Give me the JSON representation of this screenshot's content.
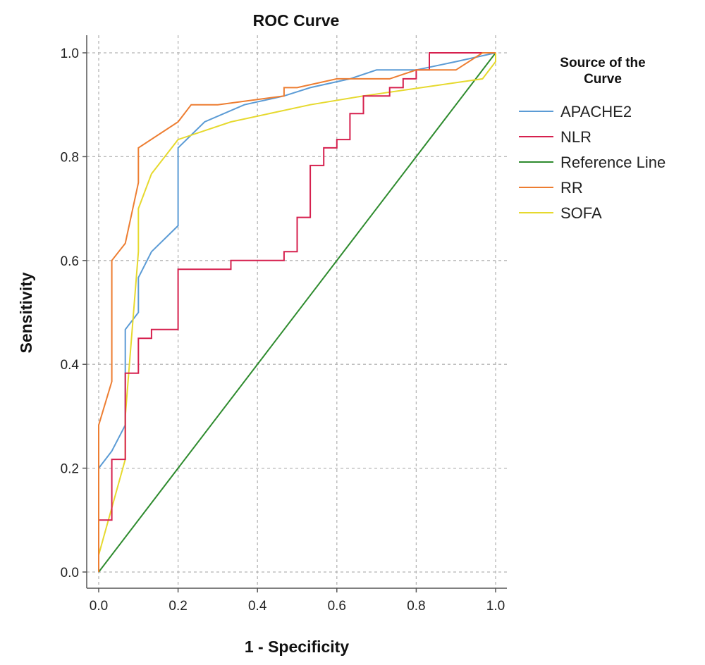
{
  "chart_data": {
    "type": "line",
    "title": "ROC Curve",
    "xlabel": "1 - Specificity",
    "ylabel": "Sensitivity",
    "xlim": [
      0,
      1
    ],
    "ylim": [
      0,
      1
    ],
    "x_ticks": [
      "0.0",
      "0.2",
      "0.4",
      "0.6",
      "0.8",
      "1.0"
    ],
    "y_ticks": [
      "0.0",
      "0.2",
      "0.4",
      "0.6",
      "0.8",
      "1.0"
    ],
    "x_tick_values": [
      0,
      0.2,
      0.4,
      0.6,
      0.8,
      1.0
    ],
    "y_tick_values": [
      0,
      0.2,
      0.4,
      0.6,
      0.8,
      1.0
    ],
    "grid": true,
    "legend": {
      "title": "Source of the Curve",
      "title_lines": [
        "Source of the",
        "Curve"
      ],
      "placement": "right"
    },
    "series": [
      {
        "name": "APACHE2",
        "color": "#5b9bd5",
        "points": [
          [
            0,
            0
          ],
          [
            0,
            0.2
          ],
          [
            0.033,
            0.233
          ],
          [
            0.067,
            0.283
          ],
          [
            0.067,
            0.467
          ],
          [
            0.1,
            0.5
          ],
          [
            0.1,
            0.567
          ],
          [
            0.133,
            0.617
          ],
          [
            0.2,
            0.667
          ],
          [
            0.2,
            0.817
          ],
          [
            0.267,
            0.867
          ],
          [
            0.367,
            0.9
          ],
          [
            0.467,
            0.917
          ],
          [
            0.533,
            0.933
          ],
          [
            0.633,
            0.95
          ],
          [
            0.7,
            0.967
          ],
          [
            0.8,
            0.967
          ],
          [
            0.9,
            0.983
          ],
          [
            1.0,
            1.0
          ]
        ]
      },
      {
        "name": "NLR",
        "color": "#d6204e",
        "points": [
          [
            0,
            0
          ],
          [
            0,
            0.1
          ],
          [
            0.033,
            0.1
          ],
          [
            0.033,
            0.217
          ],
          [
            0.067,
            0.217
          ],
          [
            0.067,
            0.383
          ],
          [
            0.1,
            0.383
          ],
          [
            0.1,
            0.45
          ],
          [
            0.133,
            0.45
          ],
          [
            0.133,
            0.467
          ],
          [
            0.2,
            0.467
          ],
          [
            0.2,
            0.583
          ],
          [
            0.333,
            0.583
          ],
          [
            0.333,
            0.6
          ],
          [
            0.467,
            0.6
          ],
          [
            0.467,
            0.617
          ],
          [
            0.5,
            0.617
          ],
          [
            0.5,
            0.683
          ],
          [
            0.533,
            0.683
          ],
          [
            0.533,
            0.783
          ],
          [
            0.567,
            0.783
          ],
          [
            0.567,
            0.817
          ],
          [
            0.6,
            0.817
          ],
          [
            0.6,
            0.833
          ],
          [
            0.633,
            0.833
          ],
          [
            0.633,
            0.883
          ],
          [
            0.667,
            0.883
          ],
          [
            0.667,
            0.917
          ],
          [
            0.733,
            0.917
          ],
          [
            0.733,
            0.933
          ],
          [
            0.767,
            0.933
          ],
          [
            0.767,
            0.95
          ],
          [
            0.8,
            0.95
          ],
          [
            0.8,
            0.967
          ],
          [
            0.833,
            0.967
          ],
          [
            0.833,
            1.0
          ],
          [
            1.0,
            1.0
          ]
        ]
      },
      {
        "name": "Reference Line",
        "color": "#2e8b2e",
        "points": [
          [
            0,
            0
          ],
          [
            1.0,
            1.0
          ]
        ]
      },
      {
        "name": "RR",
        "color": "#ed7d31",
        "points": [
          [
            0,
            0
          ],
          [
            0,
            0.283
          ],
          [
            0.033,
            0.367
          ],
          [
            0.033,
            0.6
          ],
          [
            0.067,
            0.633
          ],
          [
            0.1,
            0.75
          ],
          [
            0.1,
            0.817
          ],
          [
            0.2,
            0.867
          ],
          [
            0.233,
            0.9
          ],
          [
            0.3,
            0.9
          ],
          [
            0.467,
            0.917
          ],
          [
            0.467,
            0.933
          ],
          [
            0.5,
            0.933
          ],
          [
            0.6,
            0.95
          ],
          [
            0.733,
            0.95
          ],
          [
            0.8,
            0.967
          ],
          [
            0.9,
            0.967
          ],
          [
            0.967,
            1.0
          ],
          [
            1.0,
            1.0
          ]
        ]
      },
      {
        "name": "SOFA",
        "color": "#e6d92e",
        "points": [
          [
            0,
            0
          ],
          [
            0,
            0.033
          ],
          [
            0.067,
            0.217
          ],
          [
            0.067,
            0.3
          ],
          [
            0.1,
            0.617
          ],
          [
            0.1,
            0.7
          ],
          [
            0.133,
            0.767
          ],
          [
            0.2,
            0.833
          ],
          [
            0.333,
            0.867
          ],
          [
            0.533,
            0.9
          ],
          [
            0.667,
            0.917
          ],
          [
            0.967,
            0.95
          ],
          [
            1.0,
            0.983
          ],
          [
            1.0,
            1.0
          ]
        ]
      }
    ]
  }
}
